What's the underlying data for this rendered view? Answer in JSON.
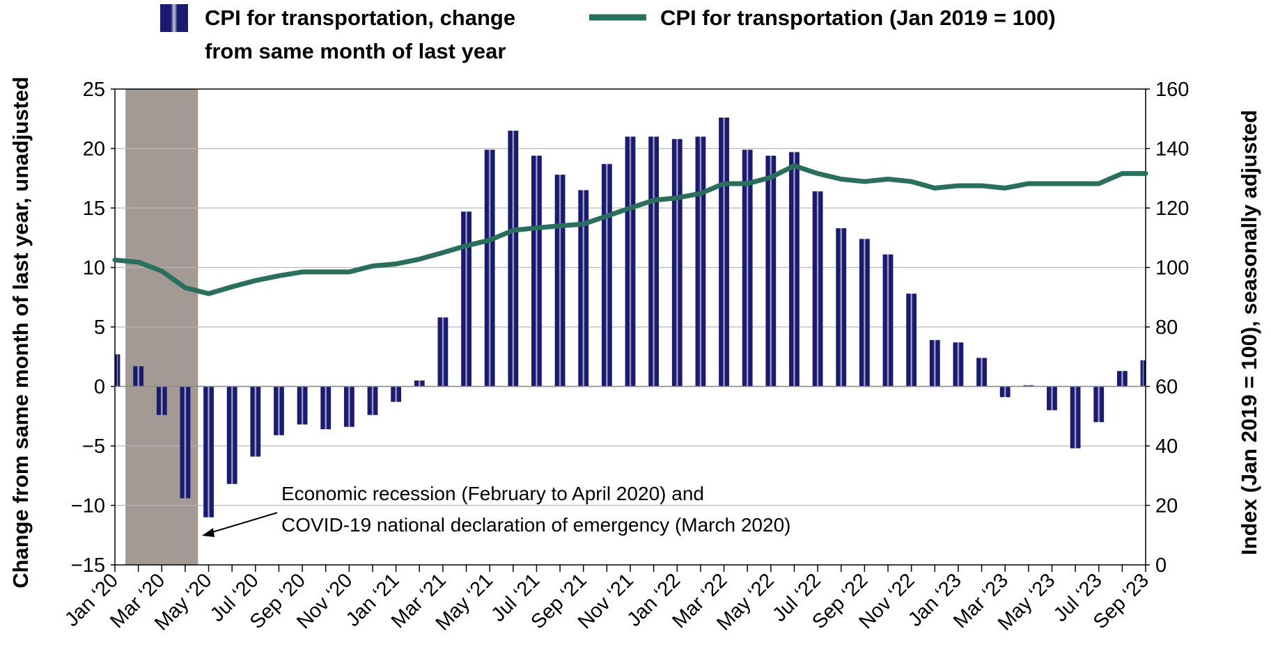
{
  "chart_data": {
    "type": "bar+line",
    "legend": {
      "bar_label_line1": "CPI for transportation, change",
      "bar_label_line2": "from same month of last year",
      "line_label": "CPI for transportation (Jan 2019 = 100)",
      "placement": "top"
    },
    "left_axis": {
      "title": "Change from same month of last year, unadjusted",
      "ylim": [
        -15,
        25
      ],
      "ticks": [
        {
          "value": 25,
          "label": "25"
        },
        {
          "value": 20,
          "label": "20"
        },
        {
          "value": 15,
          "label": "15"
        },
        {
          "value": 10,
          "label": "10"
        },
        {
          "value": 5,
          "label": "5"
        },
        {
          "value": 0,
          "label": "0"
        },
        {
          "value": -5,
          "label": "−5"
        },
        {
          "value": -10,
          "label": "−10"
        },
        {
          "value": -15,
          "label": "−15"
        }
      ]
    },
    "right_axis": {
      "title": "Index (Jan 2019 = 100), seasonally adjusted",
      "ylim": [
        0,
        160
      ],
      "ticks": [
        {
          "value": 160,
          "label": "160"
        },
        {
          "value": 140,
          "label": "140"
        },
        {
          "value": 120,
          "label": "120"
        },
        {
          "value": 100,
          "label": "100"
        },
        {
          "value": 80,
          "label": "80"
        },
        {
          "value": 60,
          "label": "60"
        },
        {
          "value": 40,
          "label": "40"
        },
        {
          "value": 20,
          "label": "20"
        },
        {
          "value": 0,
          "label": "0"
        }
      ]
    },
    "x_tick_labels": [
      "Jan ‘20",
      "Mar ‘20",
      "May ‘20",
      "Jul ‘20",
      "Sep ‘20",
      "Nov ‘20",
      "Jan ‘21",
      "Mar ‘21",
      "May ‘21",
      "Jul ‘21",
      "Sep ‘21",
      "Nov ‘21",
      "Jan ‘22",
      "Mar ‘22",
      "May ‘22",
      "Jul ‘22",
      "Sep ‘22",
      "Nov ‘22",
      "Jan ‘23",
      "Mar ‘23",
      "May ‘23",
      "Jul ‘23",
      "Sep ‘23"
    ],
    "months": [
      "2020-01",
      "2020-02",
      "2020-03",
      "2020-04",
      "2020-05",
      "2020-06",
      "2020-07",
      "2020-08",
      "2020-09",
      "2020-10",
      "2020-11",
      "2020-12",
      "2021-01",
      "2021-02",
      "2021-03",
      "2021-04",
      "2021-05",
      "2021-06",
      "2021-07",
      "2021-08",
      "2021-09",
      "2021-10",
      "2021-11",
      "2021-12",
      "2022-01",
      "2022-02",
      "2022-03",
      "2022-04",
      "2022-05",
      "2022-06",
      "2022-07",
      "2022-08",
      "2022-09",
      "2022-10",
      "2022-11",
      "2022-12",
      "2023-01",
      "2023-02",
      "2023-03",
      "2023-04",
      "2023-05",
      "2023-06",
      "2023-07",
      "2023-08",
      "2023-09"
    ],
    "series": [
      {
        "kind": "bar",
        "axis": "left",
        "color": "#1a1a6e",
        "values": [
          2.7,
          1.7,
          -2.4,
          -9.4,
          -11.0,
          -8.2,
          -5.9,
          -4.1,
          -3.2,
          -3.6,
          -3.4,
          -2.4,
          -1.3,
          0.5,
          5.8,
          14.7,
          19.9,
          21.5,
          19.4,
          17.8,
          16.5,
          18.7,
          21.0,
          21.0,
          20.8,
          21.0,
          22.6,
          19.9,
          19.4,
          19.7,
          16.4,
          13.3,
          12.4,
          11.1,
          7.8,
          3.9,
          3.7,
          2.4,
          -0.9,
          0.1,
          -2.0,
          -5.2,
          -3.0,
          1.3,
          2.2
        ]
      },
      {
        "kind": "line",
        "axis": "right",
        "color": "#2a6e5e",
        "values": [
          102.5,
          101.8,
          98.8,
          93.2,
          91.2,
          93.5,
          95.6,
          97.2,
          98.5,
          98.5,
          98.5,
          100.5,
          101.2,
          102.8,
          105.0,
          107.3,
          109.2,
          112.5,
          113.3,
          114.0,
          114.6,
          117.3,
          120.0,
          122.6,
          123.4,
          124.9,
          128.2,
          128.2,
          130.3,
          134.2,
          131.6,
          129.7,
          128.9,
          129.7,
          128.9,
          126.7,
          127.5,
          127.5,
          126.7,
          128.2,
          128.2,
          128.2,
          128.2,
          131.6,
          131.6
        ]
      }
    ],
    "shaded_region": {
      "from": "2020-02",
      "to": "2020-04",
      "color": "#a39a96"
    },
    "annotation": {
      "line1": "Economic recession (February to April 2020) and",
      "line2": "COVID-19 national declaration of emergency (March 2020)"
    },
    "grid": "horizontal"
  }
}
